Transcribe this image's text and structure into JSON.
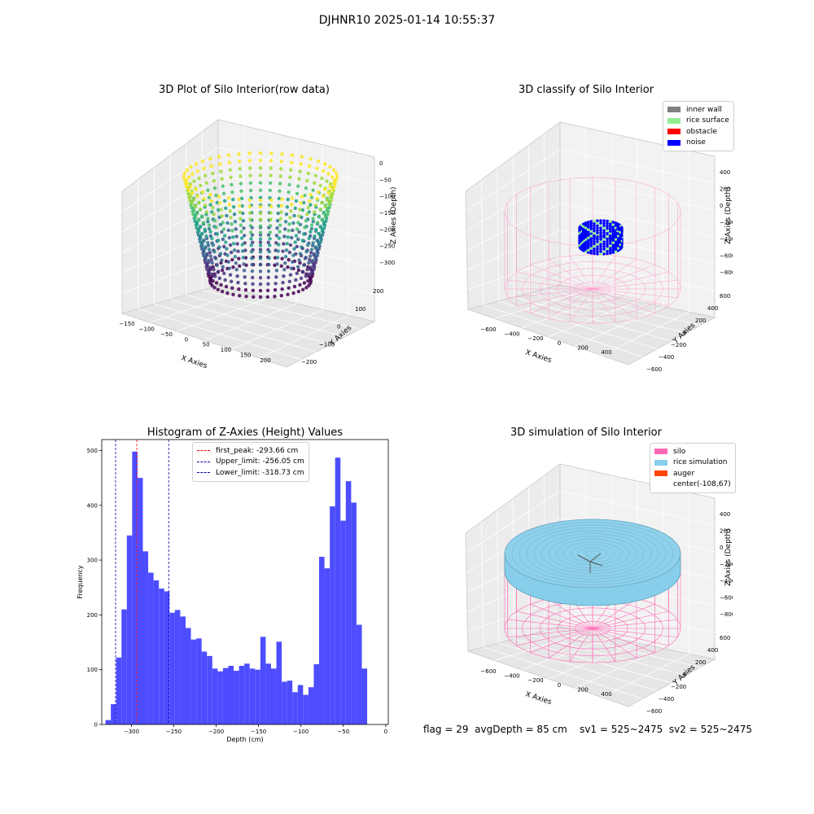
{
  "figure": {
    "suptitle": "DJHNR10 2025-01-14 10:55:37",
    "status": {
      "flag": "flag = 29",
      "avg_depth": "avgDepth = 85 cm",
      "sv1": "sv1 = 525~2475",
      "sv2": "sv2 = 525~2475"
    }
  },
  "colors": {
    "hist_bar": "#4d4dff",
    "first_peak_line": "#ff0000",
    "limit_line": "#0000aa",
    "silo": "#ff69b4",
    "rice_simulation": "#87ceeb",
    "auger": "#ff4500",
    "inner_wall": "#808080",
    "rice_surface": "#90ee90",
    "obstacle": "#ff0000",
    "noise": "#0000ff"
  },
  "chart_data": [
    {
      "type": "scatter",
      "title": "3D Plot of Silo Interior(row data)",
      "xlabel": "X Axies",
      "ylabel": "Y Axies",
      "zlabel": "Z Axies (Depth)",
      "xticks": [
        "−150",
        "−100",
        "−50",
        "0",
        "50",
        "100",
        "150",
        "200"
      ],
      "yticks": [
        "−200",
        "−100",
        "0",
        "100",
        "200"
      ],
      "zticks": [
        "0",
        "−50",
        "−100",
        "−150",
        "−200",
        "−250",
        "−300"
      ],
      "xlim": [
        -160,
        220
      ],
      "ylim": [
        -220,
        220
      ],
      "zlim": [
        -340,
        10
      ]
    },
    {
      "type": "scatter",
      "title": "3D classify of Silo Interior",
      "xlabel": "X Axies",
      "ylabel": "Y Axies",
      "zlabel": "Z Axies (Depth)",
      "xticks": [
        "−600",
        "−400",
        "−200",
        "0",
        "200",
        "400"
      ],
      "yticks": [
        "−600",
        "−400",
        "−200",
        "0",
        "200",
        "400",
        "600"
      ],
      "zticks": [
        "400",
        "200",
        "0",
        "−200",
        "−400",
        "−600",
        "−800"
      ],
      "legend": [
        "inner wall",
        "rice surface",
        "obstacle",
        "noise"
      ]
    },
    {
      "type": "bar",
      "title": "Histogram of Z-Axies (Height) Values",
      "xlabel": "Depth (cm)",
      "ylabel": "Frequency",
      "xlim": [
        -335,
        3
      ],
      "ylim": [
        0,
        520
      ],
      "xticks": [
        -300,
        -250,
        -200,
        -150,
        -100,
        -50,
        0
      ],
      "xtick_labels": [
        "−300",
        "−250",
        "−200",
        "−150",
        "−100",
        "−50",
        "0"
      ],
      "yticks": [
        0,
        100,
        200,
        300,
        400,
        500
      ],
      "bin_start": -330.6,
      "bin_width": 6.3,
      "values": [
        8,
        37,
        122,
        210,
        345,
        498,
        450,
        316,
        277,
        263,
        248,
        243,
        204,
        209,
        197,
        176,
        155,
        157,
        133,
        125,
        102,
        97,
        103,
        107,
        98,
        107,
        111,
        102,
        100,
        160,
        111,
        102,
        151,
        78,
        80,
        59,
        72,
        54,
        68,
        110,
        306,
        285,
        398,
        487,
        372,
        444,
        405,
        182,
        102
      ],
      "vlines": [
        {
          "label": "first_peak: -293.66 cm",
          "x": -293.66,
          "kind": "first_peak"
        },
        {
          "label": "Upper_limit: -256.05 cm",
          "x": -256.05,
          "kind": "limit"
        },
        {
          "label": "Lower_limit: -318.73 cm",
          "x": -318.73,
          "kind": "limit"
        }
      ]
    },
    {
      "type": "scatter",
      "title": "3D simulation of Silo Interior",
      "xlabel": "X Axies",
      "ylabel": "Y Axies",
      "zlabel": "Z Axies (Depth)",
      "xticks": [
        "−600",
        "−400",
        "−200",
        "0",
        "200",
        "400"
      ],
      "yticks": [
        "−600",
        "−400",
        "−200",
        "0",
        "200",
        "400",
        "600"
      ],
      "zticks": [
        "400",
        "200",
        "0",
        "−200",
        "−400",
        "−600",
        "−800"
      ],
      "legend": [
        "silo",
        "rice simulation",
        "auger",
        "center(-108,67)"
      ]
    }
  ]
}
